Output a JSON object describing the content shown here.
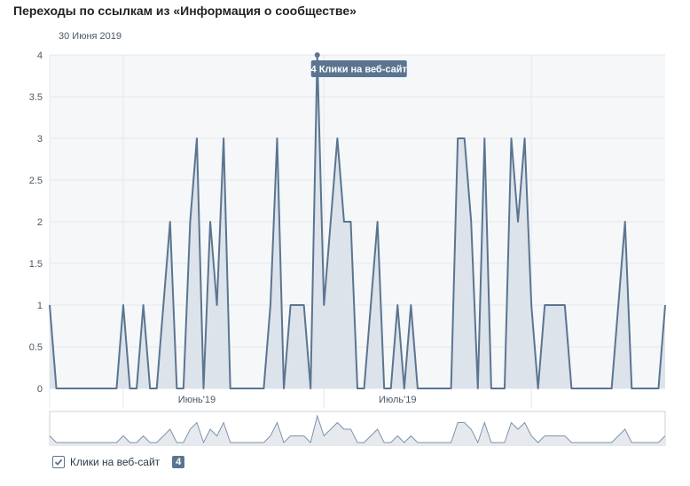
{
  "title": "Переходы по ссылкам из «Информация о сообществе»",
  "date_label": "30 Июня 2019",
  "colors": {
    "line": "#5b7591",
    "fill": "#dde3ea",
    "grid": "#e4e8ed",
    "plot_bg": "#f5f7f9",
    "tooltip_bg": "#5b7591"
  },
  "legend": {
    "label": "Клики на веб-сайт",
    "badge": "4",
    "checked": true,
    "icon": "checkmark-icon"
  },
  "chart_data": {
    "type": "area",
    "title": "Переходы по ссылкам из «Информация о сообществе»",
    "ylim": [
      0,
      4
    ],
    "yticks": [
      "4",
      "3.5",
      "3",
      "2.5",
      "2",
      "1.5",
      "1",
      "0.5",
      "0"
    ],
    "xtick_labels": [
      {
        "index": 22,
        "label": "Июнь'19"
      },
      {
        "index": 52,
        "label": "Июль'19"
      }
    ],
    "month_boundaries": [
      11,
      41,
      72
    ],
    "grid": true,
    "series": [
      {
        "name": "Клики на веб-сайт",
        "values": [
          1,
          0,
          0,
          0,
          0,
          0,
          0,
          0,
          0,
          0,
          0,
          1,
          0,
          0,
          1,
          0,
          0,
          1,
          2,
          0,
          0,
          2,
          3,
          0,
          2,
          1,
          3,
          0,
          0,
          0,
          0,
          0,
          0,
          1,
          3,
          0,
          1,
          1,
          1,
          0,
          4,
          1,
          2,
          3,
          2,
          2,
          0,
          0,
          1,
          2,
          0,
          0,
          1,
          0,
          1,
          0,
          0,
          0,
          0,
          0,
          0,
          3,
          3,
          2,
          0,
          3,
          0,
          0,
          0,
          3,
          2,
          3,
          1,
          0,
          1,
          1,
          1,
          1,
          0,
          0,
          0,
          0,
          0,
          0,
          0,
          1,
          2,
          0,
          0,
          0,
          0,
          0,
          1
        ]
      }
    ],
    "tooltip": {
      "index": 40,
      "text": "4 Клики на веб-сайт"
    }
  }
}
